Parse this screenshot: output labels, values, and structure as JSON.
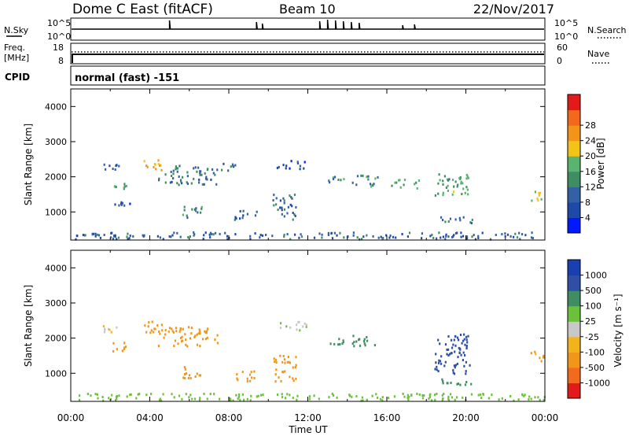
{
  "header": {
    "radar": "Dome C East (fitACF)",
    "beam": "Beam 10",
    "date": "22/Nov/2017"
  },
  "noise_panel": {
    "left_label": "N.Sky",
    "right_label": "N.Search",
    "y_top": "10^5",
    "y_bottom": "10^0",
    "right_top": "10^5",
    "right_bottom": "10^0"
  },
  "freq_panel": {
    "left_label_1": "Freq.",
    "left_label_2": "[MHz]",
    "right_label": "Nave",
    "left_ticks": [
      "18",
      "8"
    ],
    "right_ticks": [
      "60",
      "0"
    ]
  },
  "cpid_panel": {
    "label": "CPID",
    "value": "normal (fast) -151"
  },
  "colors": {
    "power_scale": [
      "#0019ff",
      "#1f49a8",
      "#3461a6",
      "#3f8d62",
      "#58b46e",
      "#f2c416",
      "#f29416",
      "#f2691d",
      "#e31a1a"
    ],
    "velocity_scale": [
      "#e31a1a",
      "#f26a1d",
      "#f2961a",
      "#f2b41a",
      "#c8c8c8",
      "#6cc13a",
      "#3f8d62",
      "#2e4fa5",
      "#1a3fb0"
    ]
  },
  "power_colorbar": {
    "label": "Power [dB]",
    "ticks": [
      "4",
      "8",
      "12",
      "16",
      "20",
      "24",
      "28"
    ]
  },
  "velocity_colorbar": {
    "label": "Velocity [m s⁻¹]",
    "ticks": [
      "-1000",
      "-500",
      "-100",
      "-25",
      "25",
      "100",
      "500",
      "1000"
    ]
  },
  "chart_data": [
    {
      "type": "heatmap",
      "title": "",
      "xlabel": "",
      "ylabel": "Slant Range [km]",
      "ylim": [
        200,
        4500
      ],
      "xlim": [
        0,
        24
      ],
      "y_ticks": [
        "1000",
        "2000",
        "3000",
        "4000"
      ],
      "x_ticks": [
        "00:00",
        "04:00",
        "08:00",
        "12:00",
        "16:00",
        "20:00",
        "00:00"
      ],
      "quantity": "Power [dB]",
      "clusters": [
        {
          "t": [
            1.5,
            2.4
          ],
          "r": [
            2200,
            2400
          ],
          "v": 8
        },
        {
          "t": [
            2.0,
            2.8
          ],
          "r": [
            1650,
            1900
          ],
          "v": 14
        },
        {
          "t": [
            2.2,
            3.0
          ],
          "r": [
            1200,
            1350
          ],
          "v": 6
        },
        {
          "t": [
            3.6,
            4.6
          ],
          "r": [
            2150,
            2500
          ],
          "v": 22
        },
        {
          "t": [
            4.4,
            7.4
          ],
          "r": [
            1800,
            2350
          ],
          "v": 10
        },
        {
          "t": [
            5.6,
            6.6
          ],
          "r": [
            850,
            1250
          ],
          "v": 12
        },
        {
          "t": [
            7.6,
            8.3
          ],
          "r": [
            2200,
            2450
          ],
          "v": 8
        },
        {
          "t": [
            8.2,
            9.4
          ],
          "r": [
            800,
            1100
          ],
          "v": 8
        },
        {
          "t": [
            10.4,
            11.9
          ],
          "r": [
            2250,
            2500
          ],
          "v": 6
        },
        {
          "t": [
            10.2,
            11.4
          ],
          "r": [
            800,
            1550
          ],
          "v": 10
        },
        {
          "t": [
            13.0,
            13.8
          ],
          "r": [
            1850,
            2050
          ],
          "v": 12
        },
        {
          "t": [
            14.2,
            15.5
          ],
          "r": [
            1750,
            2100
          ],
          "v": 12
        },
        {
          "t": [
            16.2,
            17.6
          ],
          "r": [
            1700,
            1950
          ],
          "v": 14
        },
        {
          "t": [
            18.4,
            20.2
          ],
          "r": [
            1500,
            2150
          ],
          "v": 14
        },
        {
          "t": [
            18.6,
            20.4
          ],
          "r": [
            700,
            900
          ],
          "v": 12
        },
        {
          "t": [
            23.2,
            24.0
          ],
          "r": [
            1350,
            1650
          ],
          "v": 18
        },
        {
          "t": [
            0.2,
            24.0
          ],
          "r": [
            250,
            450
          ],
          "v": 8
        }
      ]
    },
    {
      "type": "heatmap",
      "title": "",
      "xlabel": "Time UT",
      "ylabel": "Slant Range [km]",
      "ylim": [
        200,
        4500
      ],
      "xlim": [
        0,
        24
      ],
      "y_ticks": [
        "1000",
        "2000",
        "3000",
        "4000"
      ],
      "x_ticks": [
        "00:00",
        "04:00",
        "08:00",
        "12:00",
        "16:00",
        "20:00",
        "00:00"
      ],
      "quantity": "Velocity [m s^-1]",
      "clusters": [
        {
          "t": [
            1.5,
            2.4
          ],
          "r": [
            2200,
            2400
          ],
          "v": -20
        },
        {
          "t": [
            2.0,
            2.8
          ],
          "r": [
            1650,
            1900
          ],
          "v": -200
        },
        {
          "t": [
            3.6,
            4.6
          ],
          "r": [
            2150,
            2500
          ],
          "v": -300
        },
        {
          "t": [
            4.4,
            7.4
          ],
          "r": [
            1800,
            2350
          ],
          "v": -150
        },
        {
          "t": [
            5.6,
            6.6
          ],
          "r": [
            850,
            1250
          ],
          "v": -200
        },
        {
          "t": [
            8.2,
            9.4
          ],
          "r": [
            800,
            1100
          ],
          "v": -300
        },
        {
          "t": [
            10.4,
            11.9
          ],
          "r": [
            2250,
            2500
          ],
          "v": 10
        },
        {
          "t": [
            10.2,
            11.4
          ],
          "r": [
            800,
            1550
          ],
          "v": -300
        },
        {
          "t": [
            13.0,
            13.8
          ],
          "r": [
            1850,
            2050
          ],
          "v": 200
        },
        {
          "t": [
            14.2,
            15.5
          ],
          "r": [
            1750,
            2100
          ],
          "v": 200
        },
        {
          "t": [
            18.4,
            20.2
          ],
          "r": [
            1000,
            2150
          ],
          "v": 800
        },
        {
          "t": [
            18.6,
            20.4
          ],
          "r": [
            700,
            900
          ],
          "v": 200
        },
        {
          "t": [
            23.2,
            24.0
          ],
          "r": [
            1350,
            1650
          ],
          "v": -120
        },
        {
          "t": [
            0.2,
            24.0
          ],
          "r": [
            250,
            450
          ],
          "v": 60
        }
      ]
    }
  ]
}
